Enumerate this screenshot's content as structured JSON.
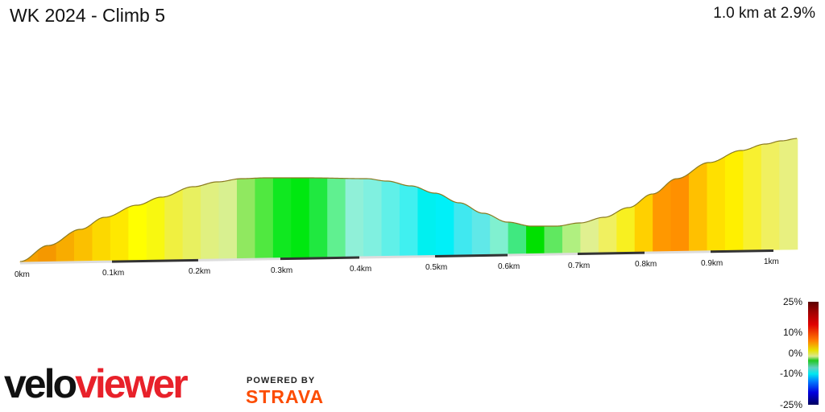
{
  "header": {
    "title": "WK 2024 - Climb 5",
    "summary": "1.0 km at 2.9%"
  },
  "axis": {
    "ticks": [
      "0km",
      "0.1km",
      "0.2km",
      "0.3km",
      "0.4km",
      "0.5km",
      "0.6km",
      "0.7km",
      "0.8km",
      "0.9km",
      "1km"
    ]
  },
  "legend": {
    "labels": [
      "25%",
      "10%",
      "0%",
      "-10%",
      "-25%"
    ]
  },
  "profile": {
    "segment_colors": [
      "#f5a000",
      "#f59800",
      "#f8ac00",
      "#fbc000",
      "#fcd800",
      "#fee800",
      "#ffff00",
      "#f8f810",
      "#f0f040",
      "#e8f060",
      "#e0f080",
      "#d8f090",
      "#90e860",
      "#50e840",
      "#10e820",
      "#00e810",
      "#20e840",
      "#60f090",
      "#90f0d8",
      "#80f0e0",
      "#60f0e8",
      "#40f0f0",
      "#00f0f0",
      "#00f0f8",
      "#40e8f0",
      "#60e8e8",
      "#80f0d0",
      "#40e880",
      "#00e000",
      "#60e860",
      "#b0f080",
      "#e0f090",
      "#f0f060",
      "#f8f020",
      "#ffd000",
      "#ff9800",
      "#ff9000",
      "#ffc000",
      "#ffe000",
      "#fff000",
      "#f8f030",
      "#f0f060",
      "#e8f080"
    ]
  },
  "branding": {
    "logo": "veloviewer",
    "powered_by": "POWERED BY",
    "strava": "STRAVA"
  }
}
